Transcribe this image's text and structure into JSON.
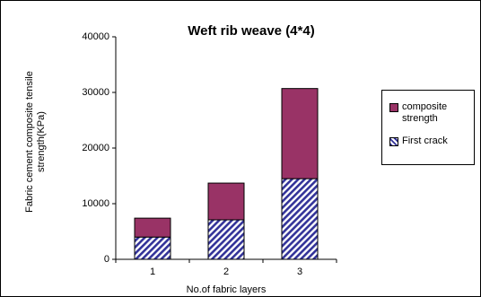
{
  "chart_data": {
    "type": "stacked_bar",
    "title": "Weft rib weave (4*4)",
    "x_label": "No.of fabric layers",
    "y_label": "Fabric cement composite  tensile strength(KPa)",
    "categories": [
      "1",
      "2",
      "3"
    ],
    "series": [
      {
        "name": "composite strength",
        "color": "#993366",
        "values": [
          3400,
          6600,
          16200
        ]
      },
      {
        "name": "First crack",
        "color": "#333399",
        "pattern": "hatch",
        "values": [
          4000,
          7100,
          14500
        ]
      }
    ],
    "stack_order": [
      1,
      0
    ],
    "ylim": [
      0,
      40000
    ],
    "yticks": [
      0,
      10000,
      20000,
      30000,
      40000
    ]
  }
}
